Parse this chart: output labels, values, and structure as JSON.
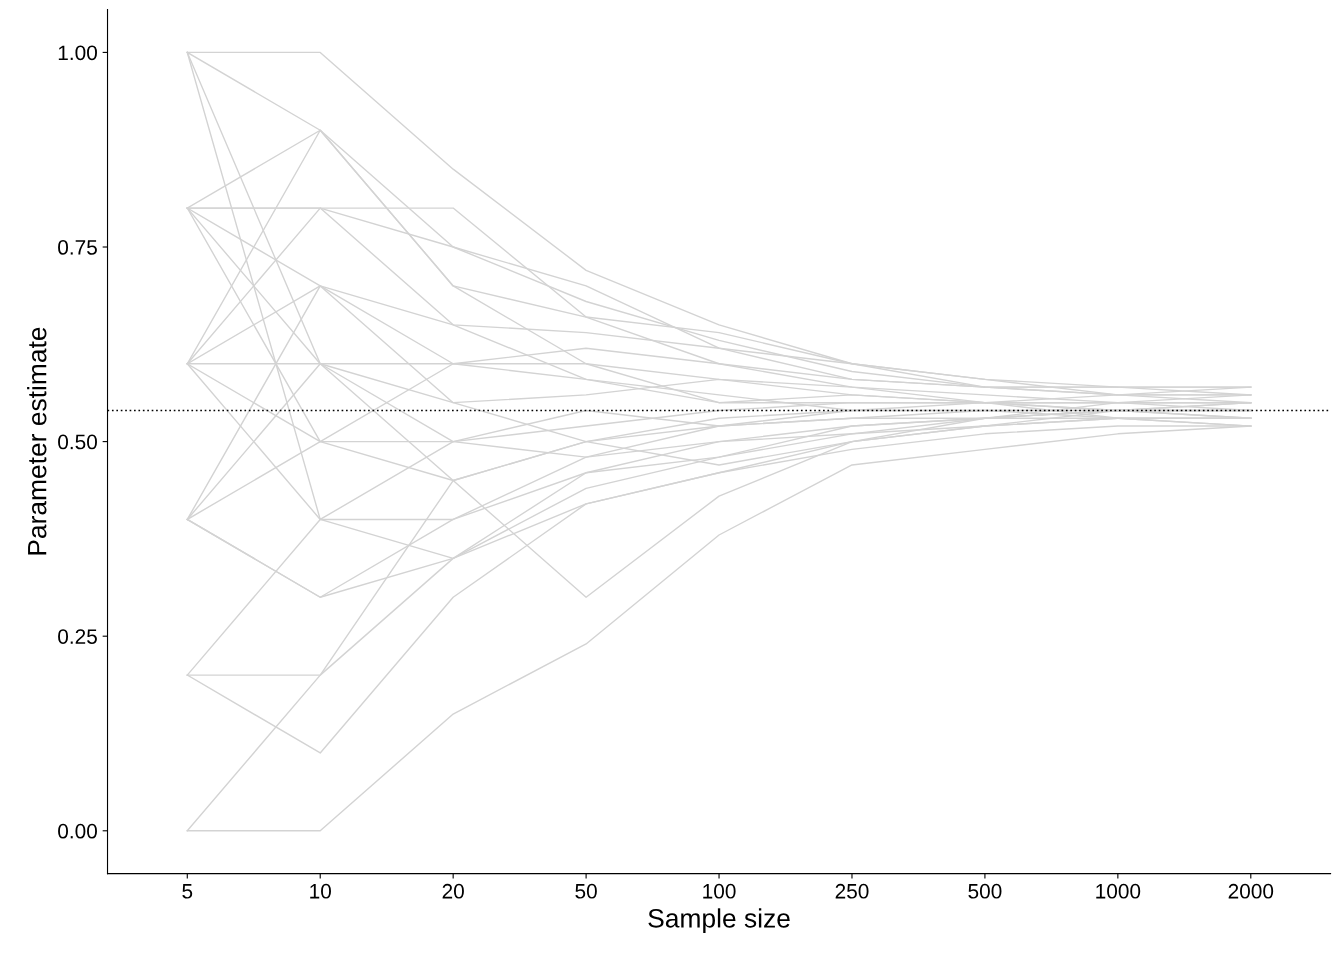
{
  "chart_data": {
    "type": "line",
    "xlabel": "Sample size",
    "ylabel": "Parameter estimate",
    "categories": [
      "5",
      "10",
      "20",
      "50",
      "100",
      "250",
      "500",
      "1000",
      "2000"
    ],
    "ylim": [
      -0.055,
      1.055
    ],
    "yticks": [
      {
        "value": 0,
        "label": "0.00"
      },
      {
        "value": 0.25,
        "label": "0.25"
      },
      {
        "value": 0.5,
        "label": "0.50"
      },
      {
        "value": 0.75,
        "label": "0.75"
      },
      {
        "value": 1,
        "label": "1.00"
      }
    ],
    "grid": false,
    "legend": false,
    "marker": "none",
    "line_style": "solid",
    "ref_lines": [
      {
        "axis": "y",
        "value": 0.54,
        "label": null,
        "color": "#000000",
        "line_style": "dotted"
      }
    ],
    "series": [
      {
        "color": "#d3d3d3",
        "values": [
          1.0,
          1.0,
          0.85,
          0.72,
          0.65,
          0.6,
          0.58,
          0.56,
          0.55
        ]
      },
      {
        "color": "#d3d3d3",
        "values": [
          0.0,
          0.0,
          0.15,
          0.24,
          0.38,
          0.47,
          0.49,
          0.51,
          0.52
        ]
      },
      {
        "color": "#d3d3d3",
        "values": [
          0.0,
          0.2,
          0.45,
          0.5,
          0.52,
          0.53,
          0.54,
          0.54,
          0.53
        ]
      },
      {
        "color": "#d3d3d3",
        "values": [
          0.2,
          0.1,
          0.3,
          0.42,
          0.46,
          0.5,
          0.52,
          0.53,
          0.53
        ]
      },
      {
        "color": "#d3d3d3",
        "values": [
          0.2,
          0.2,
          0.35,
          0.46,
          0.48,
          0.52,
          0.53,
          0.54,
          0.54
        ]
      },
      {
        "color": "#d3d3d3",
        "values": [
          1.0,
          0.9,
          0.75,
          0.7,
          0.62,
          0.58,
          0.57,
          0.56,
          0.56
        ]
      },
      {
        "color": "#d3d3d3",
        "values": [
          0.8,
          0.8,
          0.8,
          0.66,
          0.6,
          0.57,
          0.56,
          0.55,
          0.55
        ]
      },
      {
        "color": "#d3d3d3",
        "values": [
          0.8,
          0.9,
          0.7,
          0.6,
          0.55,
          0.55,
          0.55,
          0.55,
          0.54
        ]
      },
      {
        "color": "#d3d3d3",
        "values": [
          0.6,
          0.7,
          0.65,
          0.58,
          0.56,
          0.54,
          0.54,
          0.54,
          0.54
        ]
      },
      {
        "color": "#d3d3d3",
        "values": [
          0.6,
          0.5,
          0.45,
          0.3,
          0.43,
          0.5,
          0.52,
          0.54,
          0.55
        ]
      },
      {
        "color": "#d3d3d3",
        "values": [
          0.4,
          0.3,
          0.4,
          0.48,
          0.5,
          0.52,
          0.53,
          0.53,
          0.53
        ]
      },
      {
        "color": "#d3d3d3",
        "values": [
          0.4,
          0.6,
          0.55,
          0.56,
          0.58,
          0.56,
          0.55,
          0.55,
          0.55
        ]
      },
      {
        "color": "#d3d3d3",
        "values": [
          0.6,
          0.4,
          0.35,
          0.44,
          0.48,
          0.51,
          0.52,
          0.53,
          0.53
        ]
      },
      {
        "color": "#d3d3d3",
        "values": [
          1.0,
          0.4,
          0.5,
          0.52,
          0.54,
          0.55,
          0.55,
          0.54,
          0.54
        ]
      },
      {
        "color": "#d3d3d3",
        "values": [
          0.8,
          0.6,
          0.6,
          0.62,
          0.6,
          0.58,
          0.57,
          0.57,
          0.57
        ]
      },
      {
        "color": "#d3d3d3",
        "values": [
          0.4,
          0.5,
          0.5,
          0.54,
          0.52,
          0.53,
          0.53,
          0.54,
          0.54
        ]
      },
      {
        "color": "#d3d3d3",
        "values": [
          0.2,
          0.4,
          0.4,
          0.46,
          0.5,
          0.51,
          0.53,
          0.54,
          0.55
        ]
      },
      {
        "color": "#d3d3d3",
        "values": [
          0.6,
          0.8,
          0.65,
          0.64,
          0.62,
          0.6,
          0.57,
          0.57,
          0.56
        ]
      },
      {
        "color": "#d3d3d3",
        "values": [
          0.8,
          0.7,
          0.6,
          0.58,
          0.55,
          0.56,
          0.55,
          0.54,
          0.53
        ]
      },
      {
        "color": "#d3d3d3",
        "values": [
          0.4,
          0.7,
          0.55,
          0.5,
          0.47,
          0.5,
          0.53,
          0.55,
          0.56
        ]
      },
      {
        "color": "#d3d3d3",
        "values": [
          0.6,
          0.9,
          0.7,
          0.66,
          0.64,
          0.6,
          0.58,
          0.57,
          0.57
        ]
      },
      {
        "color": "#d3d3d3",
        "values": [
          1.0,
          0.6,
          0.45,
          0.5,
          0.53,
          0.54,
          0.55,
          0.56,
          0.57
        ]
      },
      {
        "color": "#d3d3d3",
        "values": [
          0.8,
          0.5,
          0.6,
          0.6,
          0.58,
          0.57,
          0.55,
          0.53,
          0.52
        ]
      },
      {
        "color": "#d3d3d3",
        "values": [
          0.4,
          0.3,
          0.35,
          0.42,
          0.46,
          0.49,
          0.51,
          0.52,
          0.52
        ]
      },
      {
        "color": "#d3d3d3",
        "values": [
          0.6,
          0.6,
          0.5,
          0.48,
          0.52,
          0.54,
          0.54,
          0.53,
          0.52
        ]
      },
      {
        "color": "#d3d3d3",
        "values": [
          0.8,
          0.8,
          0.75,
          0.68,
          0.63,
          0.59,
          0.57,
          0.56,
          0.56
        ]
      }
    ]
  }
}
